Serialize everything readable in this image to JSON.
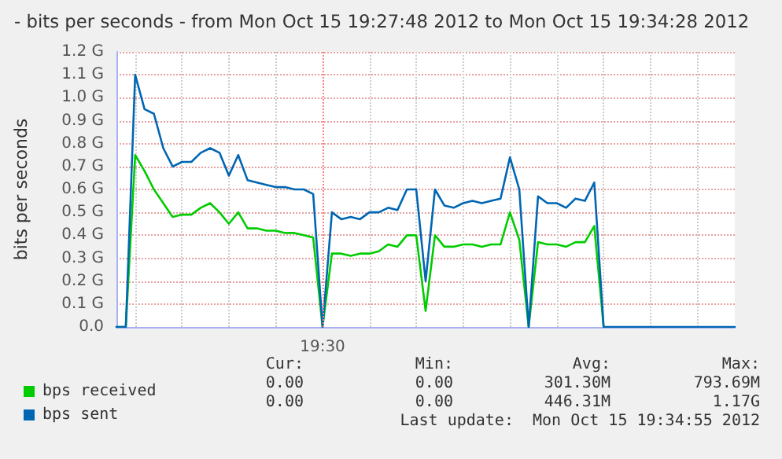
{
  "chart_data": {
    "type": "line",
    "title": "- bits per seconds - from Mon Oct 15 19:27:48 2012 to Mon Oct 15 19:34:28 2012",
    "ylabel": "bits per seconds",
    "categories": [
      null,
      null,
      null,
      null,
      null,
      null,
      null,
      null,
      null,
      null,
      null,
      null,
      null,
      null,
      null,
      null,
      null,
      null,
      null,
      null,
      null,
      null,
      "19:30",
      null,
      null,
      null,
      null,
      null,
      null,
      null,
      null,
      null,
      null,
      null,
      null,
      null,
      null,
      null,
      null,
      null,
      null,
      null,
      null,
      null,
      null,
      null,
      null,
      null,
      null,
      null,
      null,
      null,
      null,
      null,
      null,
      null,
      null,
      null,
      null,
      null,
      null,
      null,
      null,
      null,
      null,
      null,
      null
    ],
    "series": [
      {
        "name": "bps received",
        "color": "#00cc00",
        "values": [
          0,
          0,
          0.75,
          0.68,
          0.6,
          0.54,
          0.48,
          0.49,
          0.49,
          0.52,
          0.54,
          0.5,
          0.45,
          0.5,
          0.43,
          0.43,
          0.42,
          0.42,
          0.41,
          0.41,
          0.4,
          0.39,
          0,
          0.32,
          0.32,
          0.31,
          0.32,
          0.32,
          0.33,
          0.36,
          0.35,
          0.4,
          0.4,
          0.07,
          0.4,
          0.35,
          0.35,
          0.36,
          0.36,
          0.35,
          0.36,
          0.36,
          0.5,
          0.38,
          0,
          0.37,
          0.36,
          0.36,
          0.35,
          0.37,
          0.37,
          0.44,
          0,
          null,
          null,
          null,
          null,
          null,
          null,
          null,
          null,
          null,
          null,
          null,
          null,
          null,
          null
        ]
      },
      {
        "name": "bps sent",
        "color": "#0066b3",
        "values": [
          0,
          0,
          1.1,
          0.95,
          0.93,
          0.78,
          0.7,
          0.72,
          0.72,
          0.76,
          0.78,
          0.76,
          0.66,
          0.75,
          0.64,
          0.63,
          0.62,
          0.61,
          0.61,
          0.6,
          0.6,
          0.58,
          0,
          0.5,
          0.47,
          0.48,
          0.47,
          0.5,
          0.5,
          0.52,
          0.51,
          0.6,
          0.6,
          0.2,
          0.6,
          0.53,
          0.52,
          0.54,
          0.55,
          0.54,
          0.55,
          0.56,
          0.74,
          0.6,
          0,
          0.57,
          0.54,
          0.54,
          0.52,
          0.56,
          0.55,
          0.63,
          0,
          0,
          0,
          0,
          0,
          0,
          0,
          0,
          0,
          0,
          0,
          0,
          0,
          0,
          0
        ]
      }
    ],
    "ylim": [
      0,
      1.2
    ],
    "yticks": [
      {
        "value": 0,
        "label": "0.0"
      },
      {
        "value": 0.1,
        "label": "0.1 G"
      },
      {
        "value": 0.2,
        "label": "0.2 G"
      },
      {
        "value": 0.3,
        "label": "0.3 G"
      },
      {
        "value": 0.4,
        "label": "0.4 G"
      },
      {
        "value": 0.5,
        "label": "0.5 G"
      },
      {
        "value": 0.6,
        "label": "0.6 G"
      },
      {
        "value": 0.7,
        "label": "0.7 G"
      },
      {
        "value": 0.8,
        "label": "0.8 G"
      },
      {
        "value": 0.9,
        "label": "0.9 G"
      },
      {
        "value": 1.0,
        "label": "1.0 G"
      },
      {
        "value": 1.1,
        "label": "1.1 G"
      },
      {
        "value": 1.2,
        "label": "1.2 G"
      }
    ],
    "ref_lines": [
      {
        "axis": "x",
        "value": "19:30",
        "color": "#ff8080",
        "line_style": "dotted"
      }
    ],
    "grid": true,
    "legend": "bottom left",
    "marker": "none",
    "line_style": "solid",
    "annotations": [
      "Cur:",
      "Min:",
      "Avg:",
      "Max:",
      "0.00",
      "0.00",
      "301.30M",
      "793.69M",
      "0.00",
      "0.00",
      "446.31M",
      "1.17G",
      "Last update:  Mon Oct 15 19:34:55 2012"
    ]
  }
}
